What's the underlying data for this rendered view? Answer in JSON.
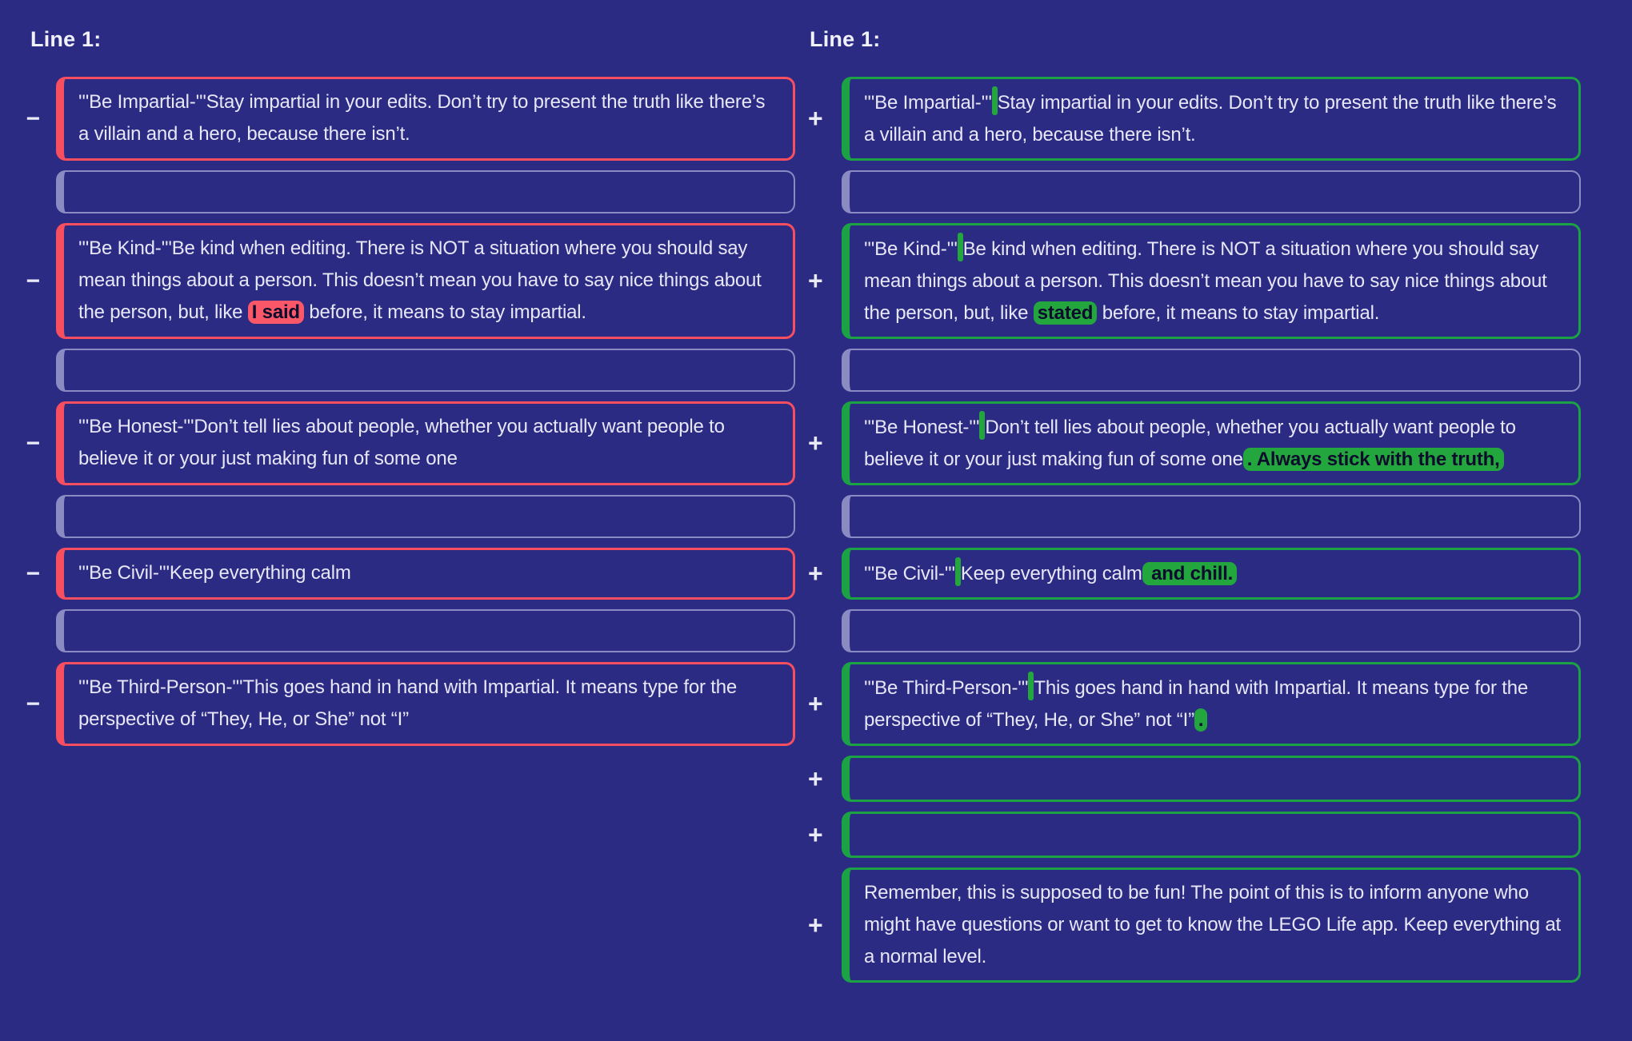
{
  "page": {
    "background_color": "#2b2b84",
    "text_color": "#e7e7f7"
  },
  "colors": {
    "removed_accent": "#f74e60",
    "removed_highlight": "#fa5868",
    "added_accent": "#1aa245",
    "added_highlight": "#24a63e",
    "spacer_border": "#8b8bc4",
    "highlight_text": "#0c0c2c"
  },
  "left_column": {
    "header": "Line 1:"
  },
  "right_column": {
    "header": "Line 1:"
  },
  "markers": {
    "removed": "−",
    "added": "+"
  },
  "rows": [
    {
      "left": {
        "kind": "removed",
        "segments": [
          {
            "type": "text",
            "text": "'''Be Impartial-'''Stay impartial in your edits. Don’t try to present the truth like there’s a villain and a hero, because there isn’t."
          }
        ]
      },
      "right": {
        "kind": "added",
        "segments": [
          {
            "type": "text",
            "text": "'''Be Impartial-'''"
          },
          {
            "type": "space",
            "text": " "
          },
          {
            "type": "text",
            "text": "Stay impartial in your edits. Don’t try to present the truth like there’s a villain and a hero, because there isn’t."
          }
        ]
      }
    },
    {
      "left": {
        "kind": "spacer",
        "segments": []
      },
      "right": {
        "kind": "spacer",
        "segments": []
      }
    },
    {
      "left": {
        "kind": "removed",
        "segments": [
          {
            "type": "text",
            "text": "'''Be Kind-'''Be kind when editing. There is NOT a situation where you should say mean things about a person. This doesn’t mean you have to say nice things about the person, but, like "
          },
          {
            "type": "removed",
            "text": "I said"
          },
          {
            "type": "text",
            "text": " before, it means to stay impartial."
          }
        ]
      },
      "right": {
        "kind": "added",
        "segments": [
          {
            "type": "text",
            "text": "'''Be Kind-'''"
          },
          {
            "type": "space",
            "text": " "
          },
          {
            "type": "text",
            "text": "Be kind when editing. There is NOT a situation where you should say mean things about a person. This doesn’t mean you have to say nice things about the person, but, like "
          },
          {
            "type": "added",
            "text": "stated"
          },
          {
            "type": "text",
            "text": " before, it means to stay impartial."
          }
        ]
      }
    },
    {
      "left": {
        "kind": "spacer",
        "segments": []
      },
      "right": {
        "kind": "spacer",
        "segments": []
      }
    },
    {
      "left": {
        "kind": "removed",
        "segments": [
          {
            "type": "text",
            "text": "'''Be Honest-'''Don’t tell lies about people, whether you actually want people to believe it or your just making fun of some one"
          }
        ]
      },
      "right": {
        "kind": "added",
        "segments": [
          {
            "type": "text",
            "text": "'''Be Honest-'''"
          },
          {
            "type": "space",
            "text": " "
          },
          {
            "type": "text",
            "text": "Don’t tell lies about people, whether you actually want people to believe it or your just making fun of some one"
          },
          {
            "type": "added",
            "text": ". Always stick with the truth,"
          }
        ]
      }
    },
    {
      "left": {
        "kind": "spacer",
        "segments": []
      },
      "right": {
        "kind": "spacer",
        "segments": []
      }
    },
    {
      "left": {
        "kind": "removed",
        "segments": [
          {
            "type": "text",
            "text": "'''Be Civil-'''Keep everything calm"
          }
        ]
      },
      "right": {
        "kind": "added",
        "segments": [
          {
            "type": "text",
            "text": "'''Be Civil-'''"
          },
          {
            "type": "space",
            "text": " "
          },
          {
            "type": "text",
            "text": "Keep everything calm"
          },
          {
            "type": "added",
            "text": " and chill."
          }
        ]
      }
    },
    {
      "left": {
        "kind": "spacer",
        "segments": []
      },
      "right": {
        "kind": "spacer",
        "segments": []
      }
    },
    {
      "left": {
        "kind": "removed",
        "segments": [
          {
            "type": "text",
            "text": "'''Be Third-Person-'''This goes hand in hand with Impartial. It means type for the perspective of “They, He, or She” not “I”"
          }
        ]
      },
      "right": {
        "kind": "added",
        "segments": [
          {
            "type": "text",
            "text": "'''Be Third-Person-'''"
          },
          {
            "type": "space",
            "text": " "
          },
          {
            "type": "text",
            "text": "This goes hand in hand with Impartial. It means type for the perspective of “They, He, or She” not “I”"
          },
          {
            "type": "added",
            "text": "."
          }
        ]
      }
    },
    {
      "left": null,
      "right": {
        "kind": "added",
        "segments": []
      }
    },
    {
      "left": null,
      "right": {
        "kind": "added",
        "segments": []
      }
    },
    {
      "left": null,
      "right": {
        "kind": "added",
        "segments": [
          {
            "type": "text",
            "text": "Remember, this is supposed to be fun! The point of this is to inform anyone who might have questions or want to get to know the LEGO Life app. Keep everything at a normal level."
          }
        ]
      }
    }
  ]
}
